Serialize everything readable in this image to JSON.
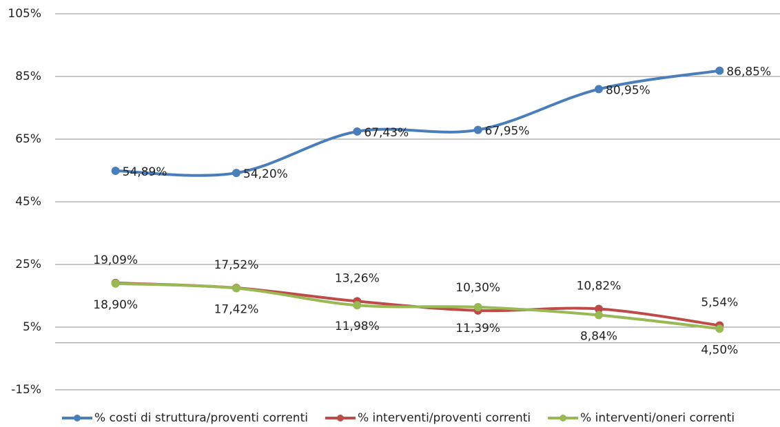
{
  "chart_data": {
    "type": "line",
    "categories": [
      null,
      null,
      null,
      null,
      null,
      null
    ],
    "series": [
      {
        "name": "% costi di struttura/proventi correnti",
        "color": "#4a7ebb",
        "label_position": "right",
        "values": [
          54.89,
          54.2,
          67.43,
          67.95,
          80.95,
          86.85
        ],
        "value_labels": [
          "54,89%",
          "54,20%",
          "67,43%",
          "67,95%",
          "80,95%",
          "86,85%"
        ]
      },
      {
        "name": "% interventi/proventi correnti",
        "color": "#be4b48",
        "label_position": "above",
        "values": [
          19.09,
          17.52,
          13.26,
          10.3,
          10.82,
          5.54
        ],
        "value_labels": [
          "19,09%",
          "17,52%",
          "13,26%",
          "10,30%",
          "10,82%",
          "5,54%"
        ]
      },
      {
        "name": "% interventi/oneri correnti",
        "color": "#98b954",
        "label_position": "below",
        "values": [
          18.9,
          17.42,
          11.98,
          11.39,
          8.84,
          4.5
        ],
        "value_labels": [
          "18,90%",
          "17,42%",
          "11,98%",
          "11,39%",
          "8,84%",
          "4,50%"
        ]
      }
    ],
    "ylim": [
      -15,
      105
    ],
    "yticks": [
      {
        "value": -15,
        "label": "-15%"
      },
      {
        "value": 5,
        "label": "5%"
      },
      {
        "value": 25,
        "label": "25%"
      },
      {
        "value": 45,
        "label": "45%"
      },
      {
        "value": 65,
        "label": "65%"
      },
      {
        "value": 85,
        "label": "85%"
      },
      {
        "value": 105,
        "label": "105%"
      }
    ],
    "grid": true,
    "smooth": true,
    "legend": "bottom"
  }
}
